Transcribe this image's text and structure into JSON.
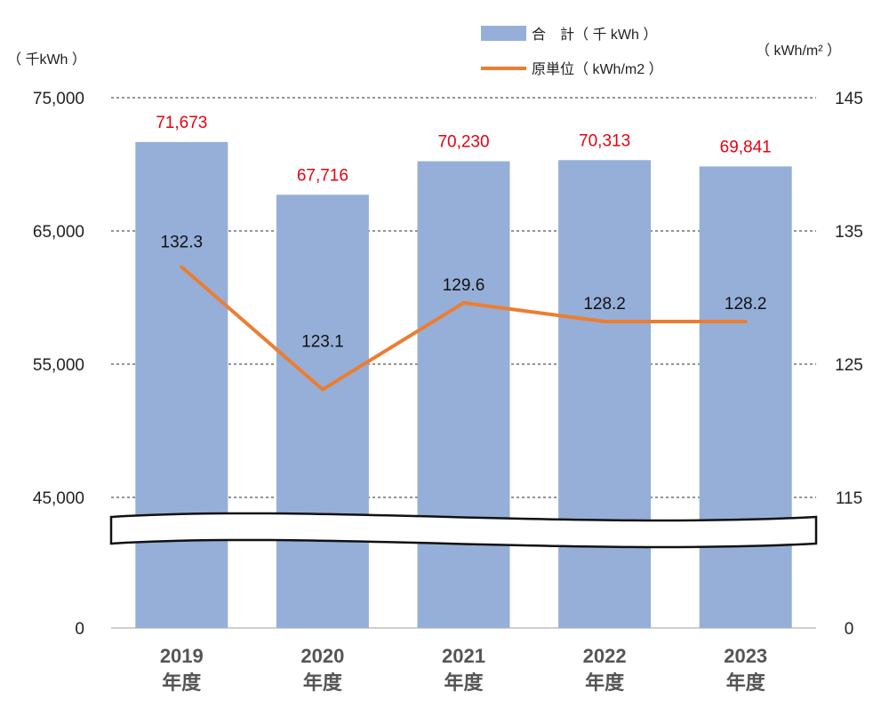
{
  "chart_data": {
    "type": "bar",
    "categories": [
      "2019\n年度",
      "2020\n年度",
      "2021\n年度",
      "2022\n年度",
      "2023\n年度"
    ],
    "series": [
      {
        "name": "合　計（ 千 kWh ）",
        "type": "bar",
        "axis": "left",
        "values": [
          71673,
          67716,
          70230,
          70313,
          69841
        ],
        "labels": [
          "71,673",
          "67,716",
          "70,230",
          "70,313",
          "69,841"
        ],
        "color": "#95afd8",
        "label_color": "#e60012"
      },
      {
        "name": "原単位（ kWh/m2 ）",
        "type": "line",
        "axis": "right",
        "values": [
          132.3,
          123.1,
          129.6,
          128.2,
          128.2
        ],
        "labels": [
          "132.3",
          "123.1",
          "129.6",
          "128.2",
          "128.2"
        ],
        "color": "#ed7d31"
      }
    ],
    "y_left": {
      "unit": "（ 千kWh ）",
      "ticks": [
        0,
        45000,
        55000,
        65000,
        75000
      ],
      "tick_labels": [
        "0",
        "45,000",
        "55,000",
        "65,000",
        "75,000"
      ],
      "broken_axis": true
    },
    "y_right": {
      "unit": "（ kWh/m² ）",
      "ticks": [
        0,
        115,
        125,
        135,
        145
      ],
      "tick_labels": [
        "0",
        "115",
        "125",
        "135",
        "145"
      ],
      "broken_axis": true
    },
    "grid": true,
    "legend_position": "top-right"
  }
}
